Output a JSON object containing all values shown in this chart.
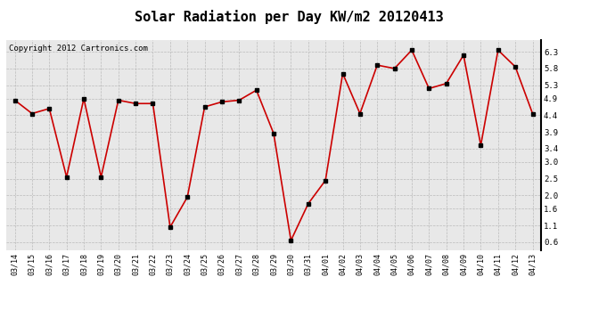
{
  "title": "Solar Radiation per Day KW/m2 20120413",
  "copyright_text": "Copyright 2012 Cartronics.com",
  "dates": [
    "03/14",
    "03/15",
    "03/16",
    "03/17",
    "03/18",
    "03/19",
    "03/20",
    "03/21",
    "03/22",
    "03/23",
    "03/24",
    "03/25",
    "03/26",
    "03/27",
    "03/28",
    "03/29",
    "03/30",
    "03/31",
    "04/01",
    "04/02",
    "04/03",
    "04/04",
    "04/05",
    "04/06",
    "04/07",
    "04/08",
    "04/09",
    "04/10",
    "04/11",
    "04/12",
    "04/13"
  ],
  "values": [
    4.85,
    4.45,
    4.6,
    2.55,
    4.9,
    2.55,
    4.85,
    4.75,
    4.75,
    1.05,
    1.95,
    4.65,
    4.8,
    4.85,
    5.15,
    3.85,
    0.65,
    1.75,
    2.45,
    5.65,
    4.45,
    5.9,
    5.8,
    6.35,
    5.2,
    5.35,
    6.2,
    3.5,
    6.35,
    5.85,
    4.45
  ],
  "line_color": "#cc0000",
  "marker_color": "#000000",
  "bg_color": "#ffffff",
  "plot_bg_color": "#e8e8e8",
  "grid_color": "#bbbbbb",
  "ylim": [
    0.35,
    6.65
  ],
  "yticks": [
    0.6,
    1.1,
    1.6,
    2.0,
    2.5,
    3.0,
    3.4,
    3.9,
    4.4,
    4.9,
    5.3,
    5.8,
    6.3
  ],
  "title_fontsize": 11,
  "copyright_fontsize": 6.5,
  "tick_fontsize": 6,
  "ytick_fontsize": 6.5
}
